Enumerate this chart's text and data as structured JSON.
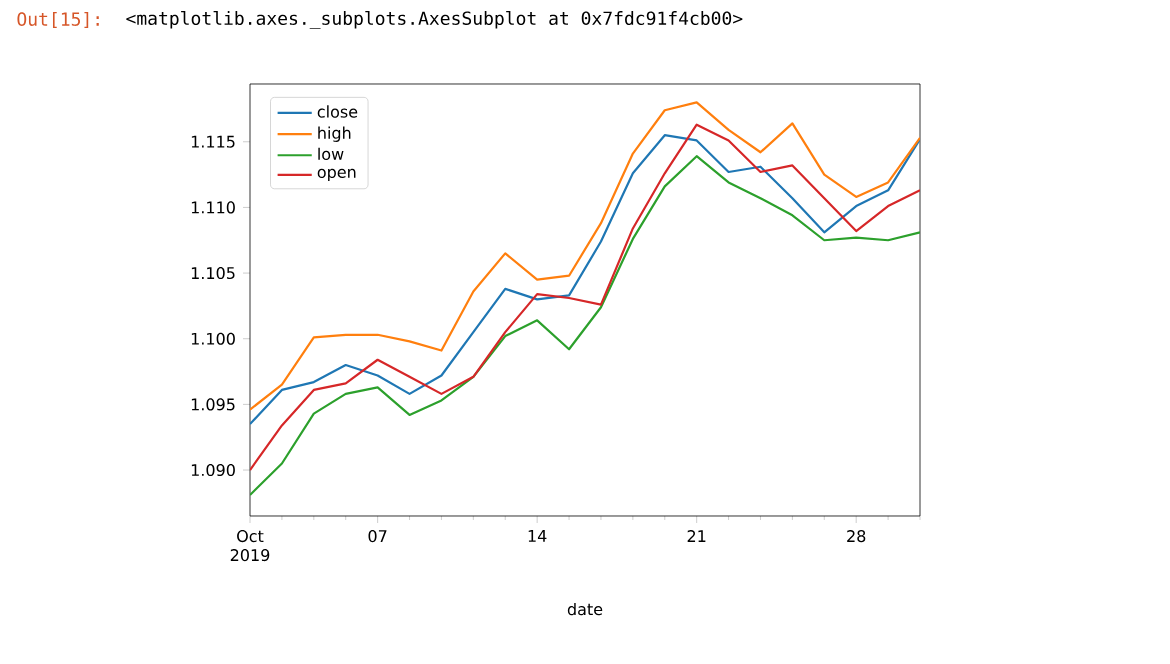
{
  "chart_data": {
    "type": "line",
    "xlabel": "date",
    "annotations": [
      "Out[15]:",
      "<matplotlib.axes._subplots.AxesSubplot at 0x7fdc91f4cb00>"
    ],
    "categories": [
      "Oct 2019",
      null,
      null,
      null,
      "07",
      null,
      null,
      null,
      null,
      "14",
      null,
      null,
      null,
      null,
      "21",
      null,
      null,
      null,
      null,
      "28",
      null,
      null
    ],
    "series": [
      {
        "name": "close",
        "color": "#1f77b4",
        "values": [
          1.0935,
          1.0961,
          1.0967,
          1.098,
          1.0972,
          1.0958,
          1.0972,
          1.1005,
          1.1038,
          1.103,
          1.1033,
          1.1074,
          1.1126,
          1.1155,
          1.1151,
          1.1127,
          1.1131,
          1.1107,
          1.1081,
          1.1101,
          1.1113,
          1.1152
        ]
      },
      {
        "name": "high",
        "color": "#ff7f0e",
        "values": [
          1.0946,
          1.0965,
          1.1001,
          1.1003,
          1.1003,
          1.0998,
          1.0991,
          1.1036,
          1.1065,
          1.1045,
          1.1048,
          1.1088,
          1.1141,
          1.1174,
          1.118,
          1.1159,
          1.1142,
          1.1164,
          1.1125,
          1.1108,
          1.1119,
          1.1153
        ]
      },
      {
        "name": "low",
        "color": "#2ca02c",
        "values": [
          1.0881,
          1.0905,
          1.0943,
          1.0958,
          1.0963,
          1.0942,
          1.0953,
          1.0971,
          1.1002,
          1.1014,
          1.0992,
          1.1024,
          1.1076,
          1.1116,
          1.1139,
          1.1119,
          1.1107,
          1.1094,
          1.1075,
          1.1077,
          1.1075,
          1.1081
        ]
      },
      {
        "name": "open",
        "color": "#d62728",
        "values": [
          1.09,
          1.0934,
          1.0961,
          1.0966,
          1.0984,
          1.0971,
          1.0958,
          1.0971,
          1.1005,
          1.1034,
          1.1031,
          1.1026,
          1.1084,
          1.1126,
          1.1163,
          1.1151,
          1.1127,
          1.1132,
          1.1107,
          1.1082,
          1.1101,
          1.1113
        ]
      }
    ],
    "ylim": [
      1.0865,
      1.1194
    ],
    "yticks": [
      {
        "value": 1.09,
        "label": "1.090"
      },
      1.095,
      {
        "value": 1.1,
        "label": "1.100"
      },
      1.105,
      {
        "value": 1.11,
        "label": "1.110"
      },
      1.115
    ],
    "legend": "top left",
    "grid": false,
    "marker": "none",
    "line_style": "solid"
  }
}
